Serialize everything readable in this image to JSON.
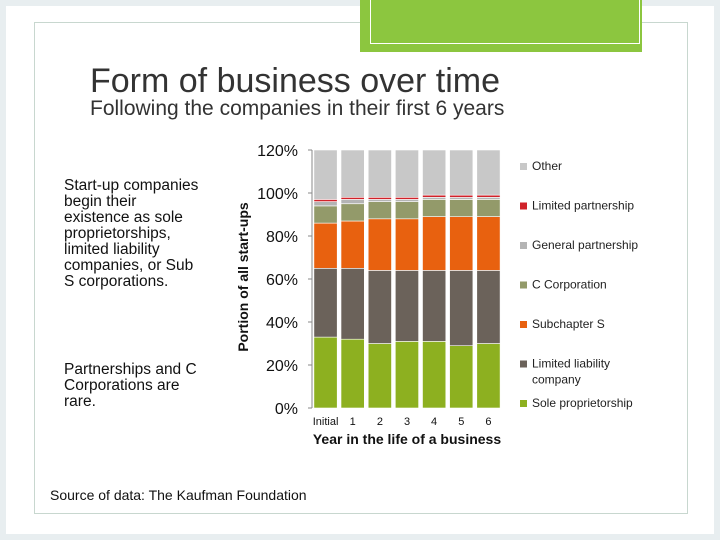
{
  "slide": {
    "title": "Form of business over time",
    "subtitle": "Following the companies in their first 6 years",
    "paragraphs": [
      "Start-up companies begin their existence as sole proprietorships, limited liability companies, or Sub S corporations.",
      "Partnerships and C Corporations are rare."
    ],
    "source": "Source of data: The Kaufman Foundation",
    "accent_color": "#8cc63f"
  },
  "chart_data": {
    "type": "bar",
    "stacked": true,
    "title": "",
    "xlabel": "Year in the life of a business",
    "ylabel": "Portion of all start-ups",
    "categories": [
      "Initial",
      "1",
      "2",
      "3",
      "4",
      "5",
      "6"
    ],
    "ylim": [
      0,
      1.2
    ],
    "yticks": [
      "0%",
      "20%",
      "40%",
      "60%",
      "80%",
      "100%",
      "120%"
    ],
    "grid": false,
    "legend_position": "right",
    "series": [
      {
        "name": "Sole proprietorship",
        "color": "#8db020",
        "values": [
          0.33,
          0.32,
          0.3,
          0.31,
          0.31,
          0.29,
          0.3
        ]
      },
      {
        "name": "Limited liability company",
        "color": "#6b625a",
        "values": [
          0.32,
          0.33,
          0.34,
          0.33,
          0.33,
          0.35,
          0.34
        ]
      },
      {
        "name": "Subchapter S",
        "color": "#e8610f",
        "values": [
          0.21,
          0.22,
          0.24,
          0.24,
          0.25,
          0.25,
          0.25
        ]
      },
      {
        "name": "C Corporation",
        "color": "#939a6a",
        "values": [
          0.08,
          0.08,
          0.08,
          0.08,
          0.08,
          0.08,
          0.08
        ]
      },
      {
        "name": "General partnership",
        "color": "#b4b4b4",
        "values": [
          0.02,
          0.02,
          0.01,
          0.01,
          0.01,
          0.01,
          0.01
        ]
      },
      {
        "name": "Limited partnership",
        "color": "#d0222a",
        "values": [
          0.01,
          0.01,
          0.01,
          0.01,
          0.01,
          0.01,
          0.01
        ]
      },
      {
        "name": "Other",
        "color": "#c8c8c8",
        "values": [
          0.23,
          0.22,
          0.22,
          0.22,
          0.21,
          0.21,
          0.21
        ]
      }
    ],
    "legend_order": [
      "Other",
      "Limited partnership",
      "General partnership",
      "C Corporation",
      "Subchapter S",
      "Limited liability company",
      "Sole proprietorship"
    ]
  }
}
